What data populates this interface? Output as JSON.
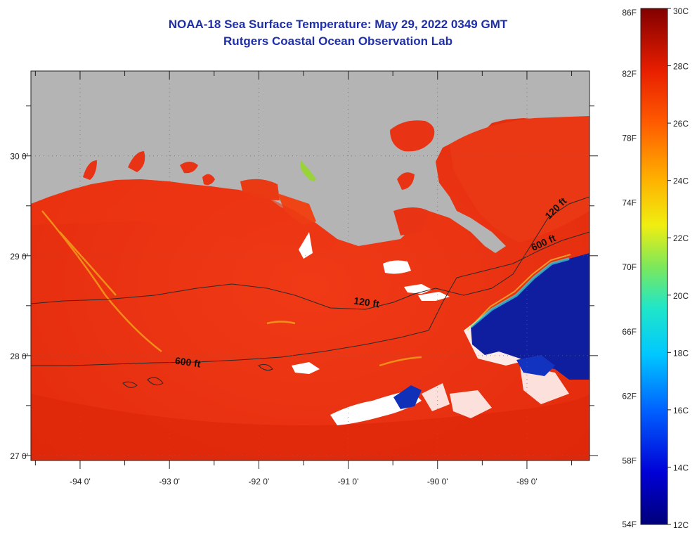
{
  "header": {
    "title": "NOAA-18 Sea Surface Temperature:  May 29, 2022 0349 GMT",
    "subtitle": "Rutgers Coastal Ocean Observation Lab"
  },
  "map": {
    "lon_range": [
      -94.55,
      -88.3
    ],
    "lat_range": [
      26.95,
      30.85
    ],
    "lon_ticks": [
      {
        "value": -94,
        "label": "-94 0'"
      },
      {
        "value": -93,
        "label": "-93 0'"
      },
      {
        "value": -92,
        "label": "-92 0'"
      },
      {
        "value": -91,
        "label": "-91 0'"
      },
      {
        "value": -90,
        "label": "-90 0'"
      },
      {
        "value": -89,
        "label": "-89 0'"
      }
    ],
    "lat_ticks": [
      {
        "value": 30,
        "label": "30 0'"
      },
      {
        "value": 29,
        "label": "29 0'"
      },
      {
        "value": 28,
        "label": "28 0'"
      },
      {
        "value": 27,
        "label": "27 0'"
      }
    ],
    "contour_labels": [
      {
        "text": "120 ft",
        "lon": -90.8,
        "lat": 28.5,
        "rotate": 8
      },
      {
        "text": "600 ft",
        "lon": -92.8,
        "lat": 27.9,
        "rotate": 8
      },
      {
        "text": "120 ft",
        "lon": -88.65,
        "lat": 29.45,
        "rotate": -45
      },
      {
        "text": "600 ft",
        "lon": -88.8,
        "lat": 29.1,
        "rotate": -25
      }
    ],
    "colors": {
      "land": "#b4b4b4",
      "ocean_warm": "#ec3212",
      "cloud": "#ffffff",
      "cold_pool": "#0a1a9a"
    }
  },
  "colorbar": {
    "f_labels": [
      "86F",
      "82F",
      "78F",
      "74F",
      "70F",
      "66F",
      "62F",
      "58F",
      "54F"
    ],
    "c_labels": [
      "30C",
      "28C",
      "26C",
      "24C",
      "22C",
      "20C",
      "18C",
      "16C",
      "14C",
      "12C"
    ]
  }
}
